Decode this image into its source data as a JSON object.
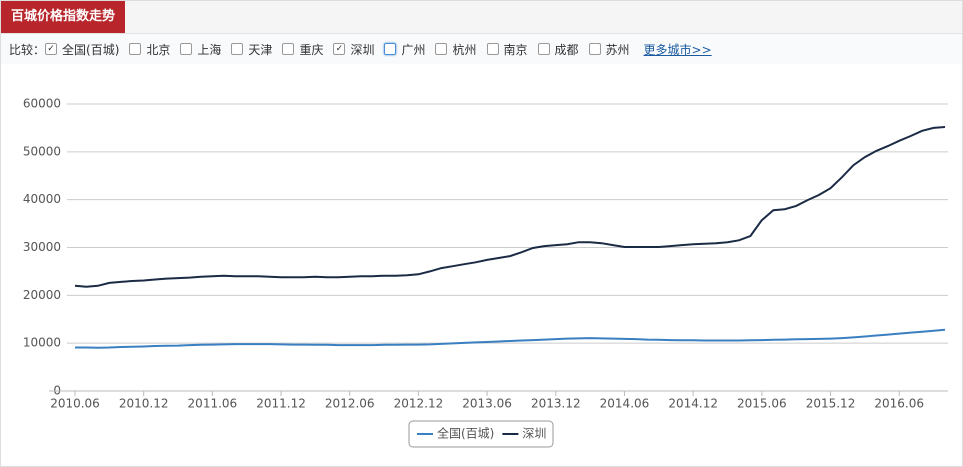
{
  "header": {
    "title": "百城价格指数走势",
    "compare_label": "比较：",
    "options": [
      {
        "label": "全国(百城)",
        "checked": true
      },
      {
        "label": "北京",
        "checked": false
      },
      {
        "label": "上海",
        "checked": false
      },
      {
        "label": "天津",
        "checked": false
      },
      {
        "label": "重庆",
        "checked": false
      },
      {
        "label": "深圳",
        "checked": true
      },
      {
        "label": "广州",
        "checked": false,
        "highlighted": true
      },
      {
        "label": "杭州",
        "checked": false
      },
      {
        "label": "南京",
        "checked": false
      },
      {
        "label": "成都",
        "checked": false
      },
      {
        "label": "苏州",
        "checked": false
      }
    ],
    "more_link": "更多城市>>"
  },
  "chart_data": {
    "type": "line",
    "categories": [
      "2010.06",
      null,
      null,
      null,
      null,
      null,
      "2010.12",
      null,
      null,
      null,
      null,
      null,
      "2011.06",
      null,
      null,
      null,
      null,
      null,
      "2011.12",
      null,
      null,
      null,
      null,
      null,
      "2012.06",
      null,
      null,
      null,
      null,
      null,
      "2012.12",
      null,
      null,
      null,
      null,
      null,
      "2013.06",
      null,
      null,
      null,
      null,
      null,
      "2013.12",
      null,
      null,
      null,
      null,
      null,
      "2014.06",
      null,
      null,
      null,
      null,
      null,
      "2014.12",
      null,
      null,
      null,
      null,
      null,
      "2015.06",
      null,
      null,
      null,
      null,
      null,
      "2015.12",
      null,
      null,
      null,
      null,
      null,
      "2016.06",
      null,
      null,
      null,
      null
    ],
    "series": [
      {
        "name": "全国(百城)",
        "color": "#3a7fc1",
        "values": [
          9100,
          9100,
          9050,
          9100,
          9200,
          9250,
          9300,
          9400,
          9450,
          9500,
          9600,
          9650,
          9700,
          9750,
          9800,
          9800,
          9800,
          9800,
          9750,
          9700,
          9700,
          9650,
          9650,
          9600,
          9600,
          9600,
          9600,
          9650,
          9650,
          9700,
          9700,
          9750,
          9850,
          9950,
          10050,
          10150,
          10250,
          10350,
          10450,
          10550,
          10650,
          10750,
          10850,
          10950,
          11000,
          11050,
          11000,
          10950,
          10900,
          10850,
          10750,
          10700,
          10650,
          10600,
          10600,
          10550,
          10550,
          10550,
          10550,
          10600,
          10650,
          10700,
          10750,
          10800,
          10850,
          10900,
          10950,
          11050,
          11200,
          11400,
          11600,
          11800,
          12000,
          12200,
          12400,
          12600,
          12800
        ]
      },
      {
        "name": "深圳",
        "color": "#1b2b45",
        "values": [
          22000,
          21800,
          22000,
          22600,
          22800,
          23000,
          23100,
          23300,
          23500,
          23600,
          23700,
          23900,
          24000,
          24100,
          24000,
          24000,
          24000,
          23900,
          23800,
          23800,
          23800,
          23900,
          23800,
          23800,
          23900,
          24000,
          24000,
          24100,
          24100,
          24200,
          24400,
          25000,
          25700,
          26100,
          26500,
          26900,
          27400,
          27800,
          28200,
          29000,
          29900,
          30300,
          30500,
          30700,
          31100,
          31100,
          30900,
          30500,
          30100,
          30100,
          30100,
          30100,
          30300,
          30500,
          30700,
          30800,
          30900,
          31100,
          31500,
          32400,
          35700,
          37800,
          38000,
          38700,
          39900,
          41000,
          42400,
          44700,
          47200,
          48900,
          50200,
          51200,
          52300,
          53300,
          54400,
          55000,
          55200
        ]
      }
    ],
    "ylim": [
      0,
      60000
    ],
    "yticks": [
      0,
      10000,
      20000,
      30000,
      40000,
      50000,
      60000
    ],
    "grid": true,
    "legend": "bottom"
  }
}
